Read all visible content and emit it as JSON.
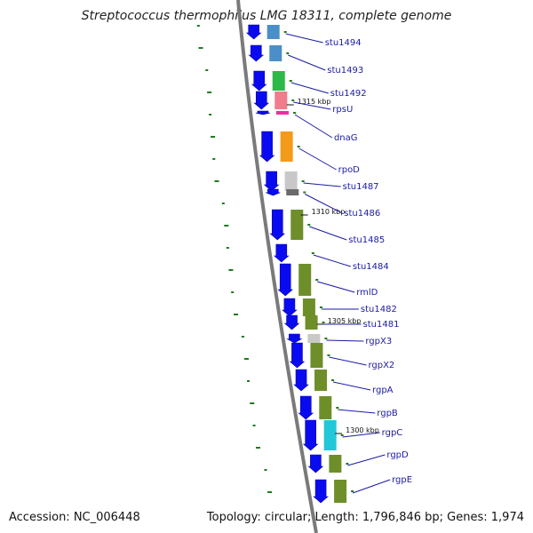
{
  "title": "Streptococcus thermophilus LMG 18311, complete genome",
  "footer": {
    "accession": "Accession: NC_006448",
    "summary": "Topology: circular; Length: 1,796,846 bp; Genes: 1,974"
  },
  "colors": {
    "cds": "#0a0af0",
    "backbone": "#7a7a7a",
    "label": "#1a1aa6",
    "ticks": "#1e7a1e"
  },
  "kbp_markers": [
    "1315 kbp",
    "1310 kbp",
    "1305 kbp",
    "1300 kbp"
  ],
  "genes": [
    {
      "label": "stu1494",
      "category_color": "#4a8fc8"
    },
    {
      "label": "stu1493",
      "category_color": "#4a8fc8"
    },
    {
      "label": "stu1492",
      "category_color": "#2db84a"
    },
    {
      "label": "rpsU",
      "category_color": "#f07c8c"
    },
    {
      "label": "dnaG",
      "category_color": "#ee2fa0"
    },
    {
      "label": "rpoD",
      "category_color": "#f39a1a"
    },
    {
      "label": "stu1487",
      "category_color": "#c8c8c8"
    },
    {
      "label": "stu1486",
      "category_color": "#6a6a6a"
    },
    {
      "label": "stu1485",
      "category_color": "#6e8e2a"
    },
    {
      "label": "stu1484",
      "category_color": ""
    },
    {
      "label": "rmlD",
      "category_color": "#6e8e2a"
    },
    {
      "label": "stu1482",
      "category_color": "#6e8e2a"
    },
    {
      "label": "stu1481",
      "category_color": "#6e8e2a"
    },
    {
      "label": "rgpX3",
      "category_color": "#c8c8c8"
    },
    {
      "label": "rgpX2",
      "category_color": "#6e8e2a"
    },
    {
      "label": "rgpA",
      "category_color": "#6e8e2a"
    },
    {
      "label": "rgpB",
      "category_color": "#6e8e2a"
    },
    {
      "label": "rgpC",
      "category_color": "#22c8d8"
    },
    {
      "label": "rgpD",
      "category_color": "#6e8e2a"
    },
    {
      "label": "rgpE",
      "category_color": "#6e8e2a"
    }
  ]
}
